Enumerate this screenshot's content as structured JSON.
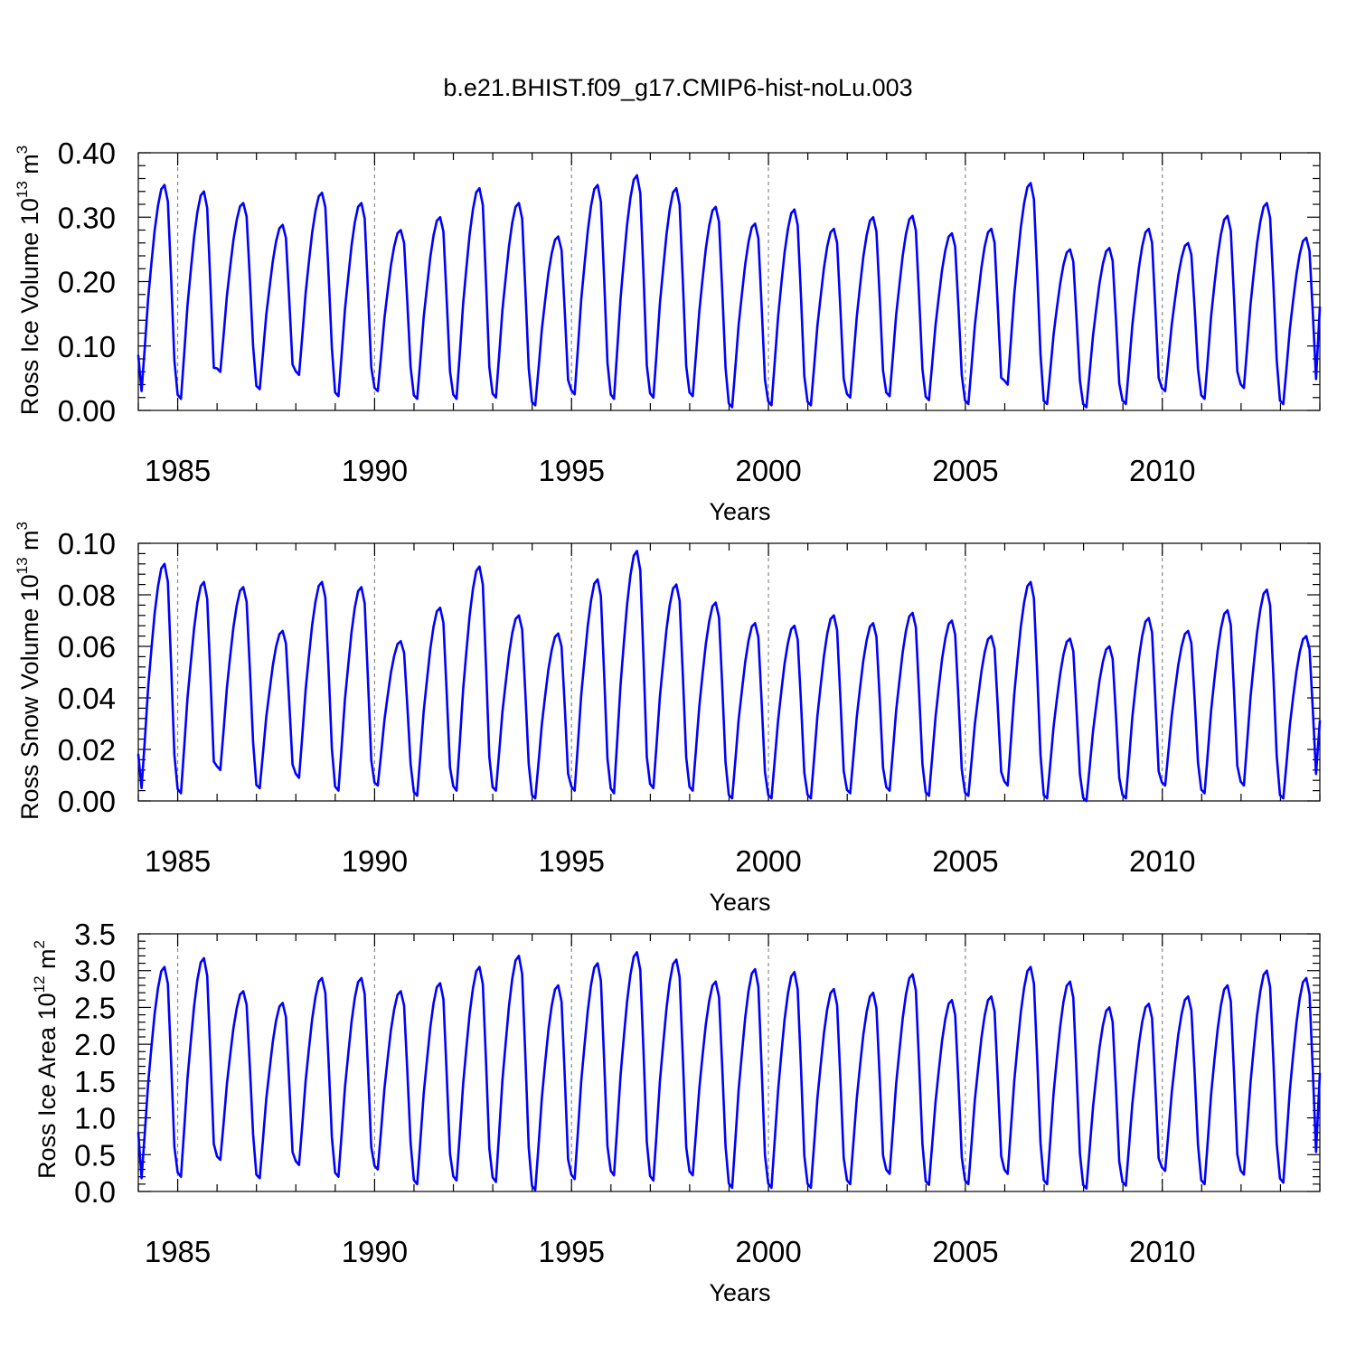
{
  "title": "b.e21.BHIST.f09_g17.CMIP6-hist-noLu.003",
  "colors": {
    "series": "#0000ff",
    "axes": "#000000",
    "grid": "#888888"
  },
  "chart_data": [
    {
      "type": "line",
      "ylabel": "Ross Ice Volume 10",
      "ylabel_exp": "13",
      "ylabel_unit": " m",
      "ylabel_unit_exp": "3",
      "xlabel": "Years",
      "xlim": [
        1984.0,
        2014.0
      ],
      "ylim": [
        0.0,
        0.4
      ],
      "xticks": [
        "1985",
        "1990",
        "1995",
        "2000",
        "2005",
        "2010"
      ],
      "yticks": [
        "0.00",
        "0.10",
        "0.20",
        "0.30",
        "0.40"
      ],
      "ytick_values": [
        0.0,
        0.1,
        0.2,
        0.3,
        0.4
      ],
      "vertical_grid": [
        1985,
        1990,
        1995,
        2000,
        2005,
        2010
      ],
      "grid_style": "dashed vertical lines at labeled years",
      "x_start": 1984.0,
      "x_step_years": 0.0833,
      "annual_max": [
        0.35,
        0.34,
        0.322,
        0.288,
        0.338,
        0.322,
        0.28,
        0.3,
        0.345,
        0.322,
        0.27,
        0.35,
        0.365,
        0.345,
        0.316,
        0.29,
        0.312,
        0.282,
        0.3,
        0.302,
        0.275,
        0.282,
        0.353,
        0.25,
        0.252,
        0.282,
        0.26,
        0.302,
        0.322,
        0.268
      ],
      "annual_min": [
        0.03,
        0.018,
        0.06,
        0.033,
        0.055,
        0.022,
        0.03,
        0.018,
        0.018,
        0.02,
        0.008,
        0.025,
        0.018,
        0.02,
        0.022,
        0.005,
        0.008,
        0.008,
        0.02,
        0.022,
        0.016,
        0.01,
        0.04,
        0.01,
        0.005,
        0.01,
        0.03,
        0.018,
        0.035,
        0.01
      ],
      "y_first": 0.085,
      "y_last": 0.16
    },
    {
      "type": "line",
      "ylabel": "Ross Snow Volume 10",
      "ylabel_exp": "13",
      "ylabel_unit": " m",
      "ylabel_unit_exp": "3",
      "xlabel": "Years",
      "xlim": [
        1984.0,
        2014.0
      ],
      "ylim": [
        0.0,
        0.1
      ],
      "xticks": [
        "1985",
        "1990",
        "1995",
        "2000",
        "2005",
        "2010"
      ],
      "yticks": [
        "0.00",
        "0.02",
        "0.04",
        "0.06",
        "0.08",
        "0.10"
      ],
      "ytick_values": [
        0.0,
        0.02,
        0.04,
        0.06,
        0.08,
        0.1
      ],
      "vertical_grid": [
        1985,
        1990,
        1995,
        2000,
        2005,
        2010
      ],
      "grid_style": "dashed vertical lines at labeled years",
      "x_start": 1984.0,
      "x_step_years": 0.0833,
      "annual_max": [
        0.092,
        0.085,
        0.083,
        0.066,
        0.085,
        0.083,
        0.062,
        0.075,
        0.091,
        0.072,
        0.065,
        0.086,
        0.097,
        0.084,
        0.077,
        0.069,
        0.068,
        0.072,
        0.069,
        0.073,
        0.07,
        0.064,
        0.085,
        0.063,
        0.06,
        0.071,
        0.066,
        0.074,
        0.082,
        0.064
      ],
      "annual_min": [
        0.005,
        0.003,
        0.012,
        0.005,
        0.009,
        0.004,
        0.006,
        0.002,
        0.004,
        0.004,
        0.001,
        0.004,
        0.003,
        0.005,
        0.004,
        0.001,
        0.001,
        0.001,
        0.003,
        0.004,
        0.002,
        0.002,
        0.006,
        0.001,
        0.0,
        0.001,
        0.006,
        0.003,
        0.006,
        0.001
      ],
      "y_first": 0.018,
      "y_last": 0.031
    },
    {
      "type": "line",
      "ylabel": "Ross Ice Area 10",
      "ylabel_exp": "12",
      "ylabel_unit": " m",
      "ylabel_unit_exp": "2",
      "xlabel": "Years",
      "xlim": [
        1984.0,
        2014.0
      ],
      "ylim": [
        0.0,
        3.5
      ],
      "xticks": [
        "1985",
        "1990",
        "1995",
        "2000",
        "2005",
        "2010"
      ],
      "yticks": [
        "0.0",
        "0.5",
        "1.0",
        "1.5",
        "2.0",
        "2.5",
        "3.0",
        "3.5"
      ],
      "ytick_values": [
        0.0,
        0.5,
        1.0,
        1.5,
        2.0,
        2.5,
        3.0,
        3.5
      ],
      "vertical_grid": [
        1985,
        1990,
        1995,
        2000,
        2005,
        2010
      ],
      "grid_style": "dashed vertical lines at labeled years",
      "x_start": 1984.0,
      "x_step_years": 0.0833,
      "annual_max": [
        3.05,
        3.17,
        2.72,
        2.56,
        2.9,
        2.9,
        2.72,
        2.83,
        3.05,
        3.2,
        2.8,
        3.1,
        3.25,
        3.15,
        2.85,
        3.02,
        2.98,
        2.75,
        2.7,
        2.95,
        2.6,
        2.65,
        3.05,
        2.85,
        2.5,
        2.55,
        2.65,
        2.8,
        3.0,
        2.9
      ],
      "annual_min": [
        0.18,
        0.2,
        0.43,
        0.18,
        0.36,
        0.2,
        0.3,
        0.1,
        0.15,
        0.13,
        0.02,
        0.17,
        0.22,
        0.15,
        0.22,
        0.05,
        0.05,
        0.05,
        0.1,
        0.24,
        0.09,
        0.1,
        0.24,
        0.1,
        0.04,
        0.08,
        0.28,
        0.1,
        0.23,
        0.12
      ],
      "y_first": 0.8,
      "y_last": 1.6
    }
  ]
}
